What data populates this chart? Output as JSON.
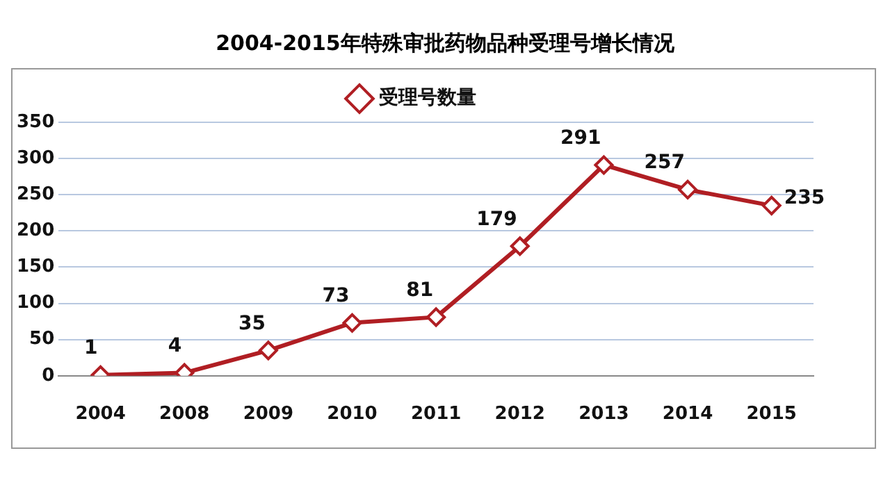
{
  "chart_data": {
    "type": "line",
    "title": "2004-2015年特殊审批药物品种受理号增长情况",
    "categories": [
      "2004",
      "2008",
      "2009",
      "2010",
      "2011",
      "2012",
      "2013",
      "2014",
      "2015"
    ],
    "series": [
      {
        "name": "受理号数量",
        "color": "#b01e23",
        "values": [
          1,
          4,
          35,
          73,
          81,
          179,
          291,
          257,
          235
        ]
      }
    ],
    "ylim": [
      0,
      350
    ],
    "yticks": [
      0,
      50,
      100,
      150,
      200,
      250,
      300,
      350
    ],
    "grid": "y",
    "legend": "top",
    "marker": "diamond",
    "line_style": "solid",
    "data_labels": true
  }
}
